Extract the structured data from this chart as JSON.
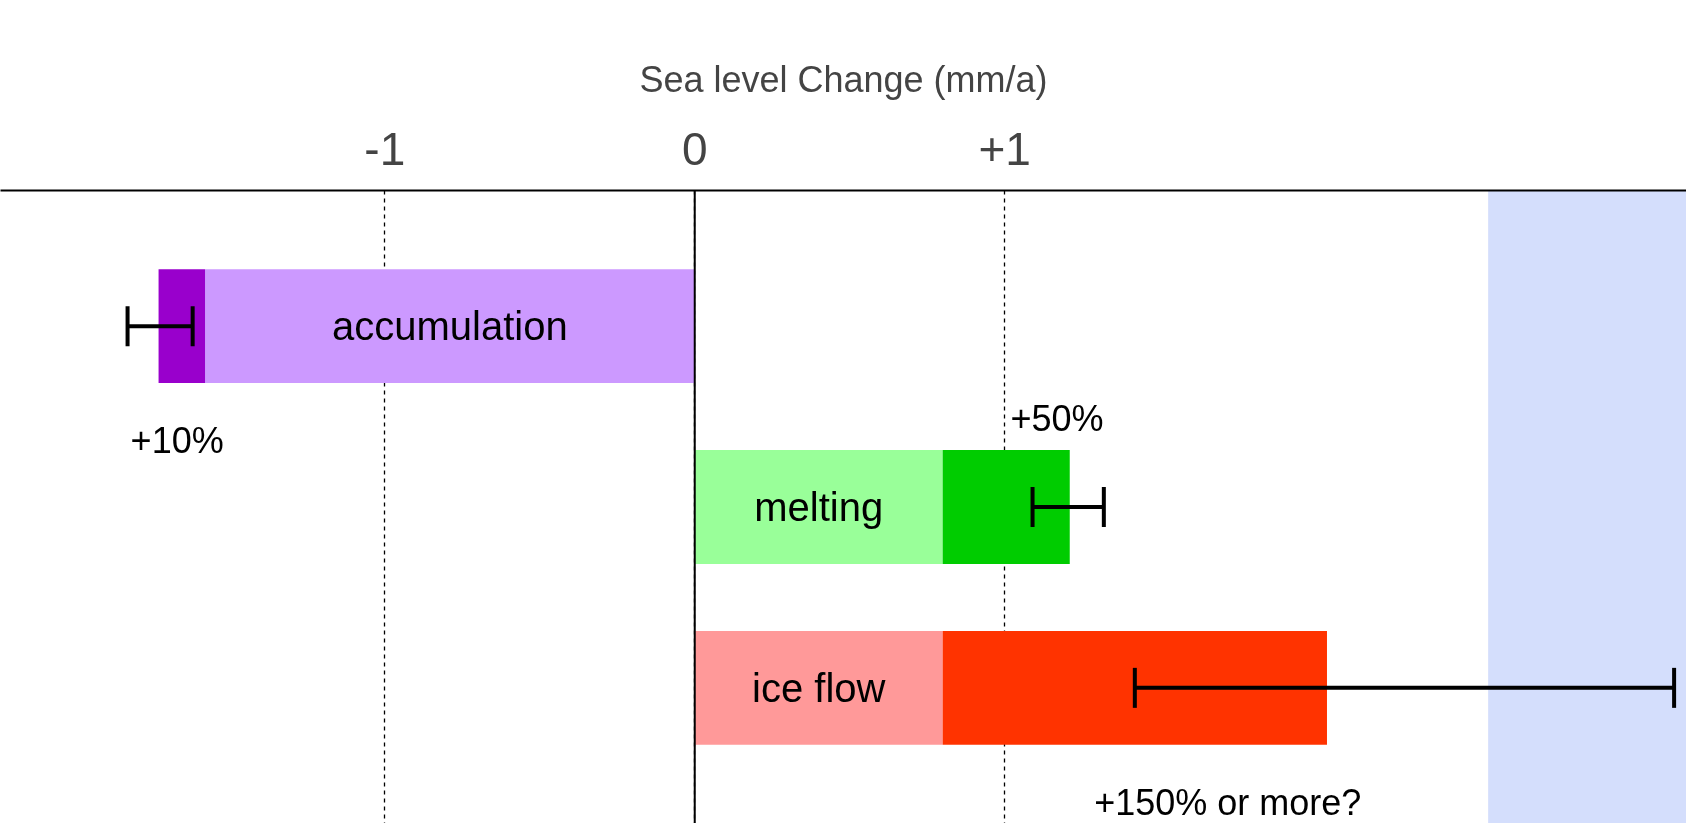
{
  "chart_data": {
    "type": "bar",
    "orientation": "horizontal",
    "stacked": true,
    "xlabel": "Sea level Change (mm/a)",
    "categories": [
      "accumulation",
      "melting",
      "ice flow"
    ],
    "series": [
      {
        "colors": [
          "#cc99ff",
          "#99ff99",
          "#ff9999"
        ],
        "values": [
          -1.58,
          0.8,
          0.8
        ]
      },
      {
        "colors": [
          "#9900cc",
          "#00cc00",
          "#ff3300"
        ],
        "values": [
          -0.15,
          0.41,
          1.24
        ],
        "errors": [
          [
            -1.83,
            -1.62
          ],
          [
            1.09,
            1.32
          ],
          [
            1.42,
            3.16
          ]
        ]
      }
    ],
    "xlim": [
      -2.24,
      3.2
    ],
    "xticks": [
      {
        "value": -1,
        "label": "-1"
      },
      {
        "value": 0,
        "label": "0"
      },
      {
        "value": 1,
        "label": "+1"
      }
    ],
    "grid": "x",
    "bands": [
      {
        "axis": "x",
        "from": 2.56,
        "to": 3.2,
        "color": "#d4defc"
      }
    ],
    "annotations": [
      {
        "text": "+10%",
        "x": -1.67,
        "y": "accumulation"
      },
      "+50%",
      {
        "text": "+150% or more?",
        "x": 1.72,
        "y": "ice flow"
      }
    ]
  }
}
